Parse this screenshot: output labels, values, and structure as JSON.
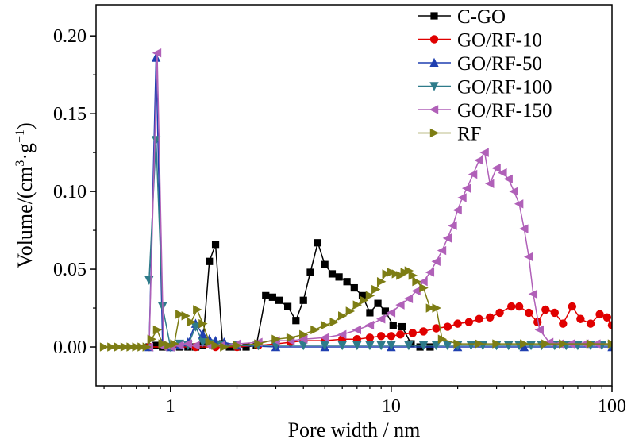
{
  "chart_data": {
    "type": "line",
    "xlabel": "Pore width / nm",
    "ylabel_main": "Volume/(cm",
    "ylabel_sup1": "3",
    "ylabel_mid": "·g",
    "ylabel_sup2": "−1",
    "ylabel_end": ")",
    "xscale": "log",
    "xlim": [
      0.46,
      100
    ],
    "ylim": [
      -0.025,
      0.22
    ],
    "xticks": [
      1,
      10,
      100
    ],
    "xtick_labels": [
      "1",
      "10",
      "100"
    ],
    "yticks": [
      0.0,
      0.05,
      0.1,
      0.15,
      0.2
    ],
    "ytick_labels": [
      "0.00",
      "0.05",
      "0.10",
      "0.15",
      "0.20"
    ],
    "legend_position": "top-right",
    "series": [
      {
        "name": "C-GO",
        "color": "#000000",
        "marker": "square",
        "x": [
          0.8,
          0.86,
          0.92,
          1.0,
          1.1,
          1.2,
          1.3,
          1.4,
          1.5,
          1.6,
          1.72,
          1.85,
          2.0,
          2.2,
          2.45,
          2.7,
          2.9,
          3.1,
          3.4,
          3.7,
          4.0,
          4.3,
          4.65,
          5.0,
          5.4,
          5.8,
          6.3,
          6.8,
          7.4,
          8.0,
          8.7,
          9.4,
          10.2,
          11.2,
          12.3,
          13.5,
          15.0
        ],
        "y": [
          0.0,
          0.001,
          0.0,
          0.0,
          0.0,
          0.0,
          0.0,
          0.001,
          0.055,
          0.066,
          0.002,
          0.0,
          0.0,
          0.0,
          0.001,
          0.033,
          0.032,
          0.03,
          0.026,
          0.017,
          0.03,
          0.048,
          0.067,
          0.053,
          0.047,
          0.045,
          0.042,
          0.038,
          0.033,
          0.022,
          0.028,
          0.023,
          0.014,
          0.013,
          0.002,
          0.0,
          0.0
        ]
      },
      {
        "name": "GO/RF-10",
        "color": "#e00000",
        "marker": "circle",
        "x": [
          0.8,
          1.0,
          1.3,
          1.6,
          2.0,
          2.5,
          3.0,
          3.5,
          4.0,
          5.0,
          6.0,
          7.0,
          8.0,
          9.0,
          10.0,
          11.0,
          12.5,
          14.0,
          16.0,
          18.0,
          20.0,
          22.5,
          25.0,
          28.0,
          31.0,
          35.0,
          38.0,
          42.0,
          46.0,
          50.0,
          55.0,
          60.0,
          66.0,
          72.0,
          80.0,
          88.0,
          95.0,
          100.0
        ],
        "y": [
          0.0,
          0.0,
          0.0,
          0.0,
          0.0,
          0.001,
          0.002,
          0.003,
          0.004,
          0.004,
          0.005,
          0.005,
          0.006,
          0.007,
          0.007,
          0.008,
          0.009,
          0.01,
          0.012,
          0.013,
          0.015,
          0.016,
          0.018,
          0.019,
          0.022,
          0.026,
          0.026,
          0.022,
          0.016,
          0.024,
          0.022,
          0.015,
          0.026,
          0.018,
          0.015,
          0.021,
          0.019,
          0.014
        ]
      },
      {
        "name": "GO/RF-50",
        "color": "#1f3fb0",
        "marker": "triangle-up",
        "x": [
          0.8,
          0.86,
          0.92,
          1.0,
          1.1,
          1.2,
          1.3,
          1.4,
          1.5,
          1.6,
          1.75,
          2.0,
          3.0,
          5.0,
          10.0,
          20.0,
          40.0,
          100.0
        ],
        "y": [
          0.0,
          0.186,
          0.003,
          0.0,
          0.001,
          0.003,
          0.015,
          0.008,
          0.005,
          0.004,
          0.003,
          0.001,
          0.0,
          0.0,
          0.0,
          0.0,
          0.0,
          0.0
        ],
        "connect_first_n": 11
      },
      {
        "name": "GO/RF-100",
        "color": "#2e7b8a",
        "marker": "triangle-down",
        "x": [
          0.8,
          0.86,
          0.92,
          1.0,
          1.1,
          1.2,
          1.3,
          1.4,
          1.5,
          1.7,
          2.0,
          2.5,
          3.0,
          4.0,
          5.0,
          6.0,
          7.0,
          8.0,
          9.0,
          10.0,
          12.0,
          14.0,
          16.0,
          18.0,
          20.0,
          23.0,
          26.0,
          30.0,
          34.0,
          38.0,
          43.0,
          48.0,
          55.0,
          62.0,
          70.0,
          80.0,
          90.0,
          100.0
        ],
        "y": [
          0.043,
          0.133,
          0.026,
          0.0,
          0.002,
          0.001,
          0.013,
          0.003,
          0.002,
          0.001,
          0.001,
          0.001,
          0.001,
          0.001,
          0.001,
          0.001,
          0.001,
          0.001,
          0.001,
          0.001,
          0.001,
          0.001,
          0.001,
          0.001,
          0.001,
          0.001,
          0.001,
          0.001,
          0.001,
          0.001,
          0.001,
          0.001,
          0.001,
          0.001,
          0.001,
          0.001,
          0.001,
          0.001
        ]
      },
      {
        "name": "GO/RF-150",
        "color": "#b060b8",
        "marker": "triangle-left",
        "x": [
          0.8,
          0.87,
          0.93,
          1.0,
          1.1,
          1.2,
          1.3,
          1.5,
          1.7,
          2.0,
          2.5,
          3.0,
          3.5,
          4.0,
          5.0,
          6.0,
          7.0,
          8.0,
          9.0,
          10.0,
          11.0,
          12.0,
          13.0,
          14.0,
          15.0,
          16.0,
          17.0,
          18.0,
          19.0,
          20.0,
          21.0,
          22.0,
          23.5,
          25.0,
          26.5,
          28.0,
          30.0,
          32.0,
          34.0,
          36.0,
          38.0,
          40.0,
          42.0,
          44.0,
          47.0,
          52.0,
          58.0,
          65.0,
          75.0,
          85.0,
          100.0
        ],
        "y": [
          0.0,
          0.189,
          0.0,
          0.0,
          0.001,
          0.002,
          0.001,
          0.001,
          0.001,
          0.002,
          0.003,
          0.004,
          0.004,
          0.005,
          0.006,
          0.008,
          0.011,
          0.014,
          0.018,
          0.022,
          0.027,
          0.031,
          0.036,
          0.042,
          0.048,
          0.055,
          0.062,
          0.07,
          0.078,
          0.088,
          0.096,
          0.102,
          0.111,
          0.12,
          0.125,
          0.105,
          0.115,
          0.112,
          0.108,
          0.1,
          0.092,
          0.076,
          0.058,
          0.034,
          0.011,
          0.003,
          0.002,
          0.002,
          0.002,
          0.002,
          0.002
        ]
      },
      {
        "name": "RF",
        "color": "#7d7d14",
        "marker": "triangle-right",
        "x": [
          0.5,
          0.54,
          0.58,
          0.62,
          0.66,
          0.7,
          0.74,
          0.78,
          0.82,
          0.87,
          0.92,
          0.98,
          1.04,
          1.1,
          1.17,
          1.24,
          1.32,
          1.4,
          1.5,
          1.6,
          1.75,
          2.0,
          2.5,
          3.0,
          3.5,
          4.0,
          4.5,
          5.0,
          5.5,
          6.0,
          6.5,
          7.0,
          7.5,
          8.0,
          8.5,
          9.0,
          9.5,
          10.0,
          10.5,
          11.0,
          11.5,
          12.0,
          12.5,
          13.0,
          14.0,
          15.0,
          16.0,
          17.0,
          20.0,
          25.0,
          30.0,
          40.0,
          50.0,
          60.0,
          80.0,
          100.0
        ],
        "y": [
          0.0,
          0.0,
          0.0,
          0.0,
          0.0,
          0.0,
          0.0,
          0.0,
          0.005,
          0.011,
          0.002,
          0.001,
          0.002,
          0.021,
          0.02,
          0.016,
          0.024,
          0.015,
          0.003,
          0.001,
          0.0,
          0.001,
          0.002,
          0.005,
          0.006,
          0.008,
          0.011,
          0.014,
          0.016,
          0.02,
          0.023,
          0.027,
          0.03,
          0.033,
          0.037,
          0.042,
          0.047,
          0.048,
          0.047,
          0.046,
          0.048,
          0.049,
          0.046,
          0.042,
          0.038,
          0.025,
          0.025,
          0.005,
          0.002,
          0.002,
          0.002,
          0.002,
          0.002,
          0.002,
          0.002,
          0.002
        ]
      }
    ]
  }
}
